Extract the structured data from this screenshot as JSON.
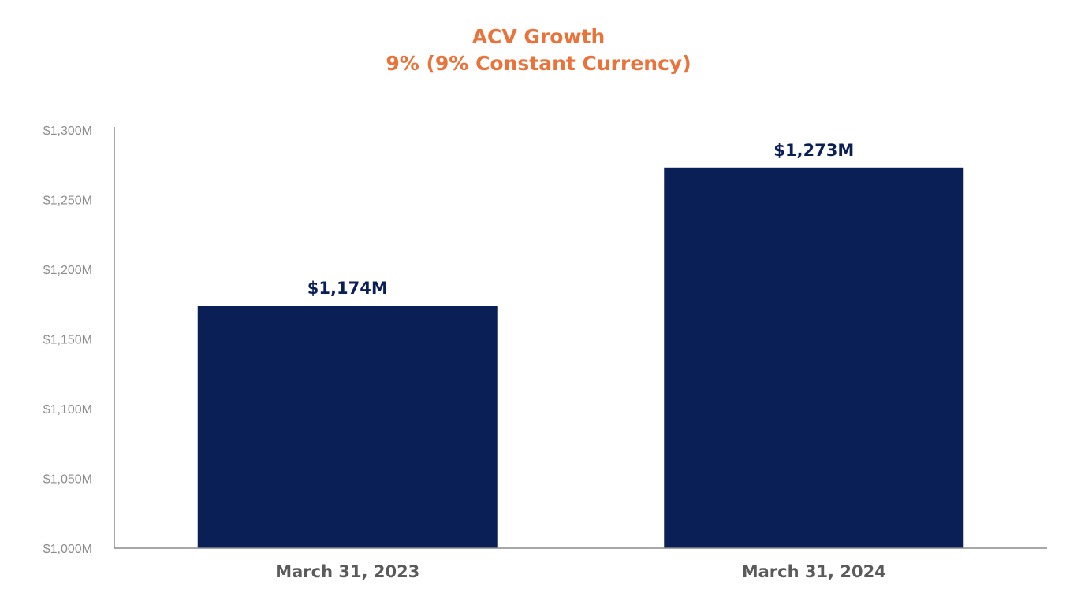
{
  "chart_data": {
    "type": "bar",
    "title": "ACV Growth",
    "subtitle": "9% (9% Constant Currency)",
    "categories": [
      "March 31, 2023",
      "March 31, 2024"
    ],
    "values": [
      1174,
      1273
    ],
    "data_labels": [
      "$1,174M",
      "$1,273M"
    ],
    "y_ticks": [
      1000,
      1050,
      1100,
      1150,
      1200,
      1250,
      1300
    ],
    "y_tick_labels": [
      "$1,000M",
      "$1,050M",
      "$1,100M",
      "$1,150M",
      "$1,200M",
      "$1,250M",
      "$1,300M"
    ],
    "ylim": [
      1000,
      1300
    ],
    "xlabel": "",
    "ylabel": "",
    "grid": false,
    "legend": "none",
    "colors": {
      "bar": "#0b1f57",
      "title": "#e8743b",
      "data_label": "#0b1f57",
      "tick_label": "#8c8c8c",
      "category_label": "#5a5a5a",
      "axis": "#8a8a8a"
    }
  }
}
